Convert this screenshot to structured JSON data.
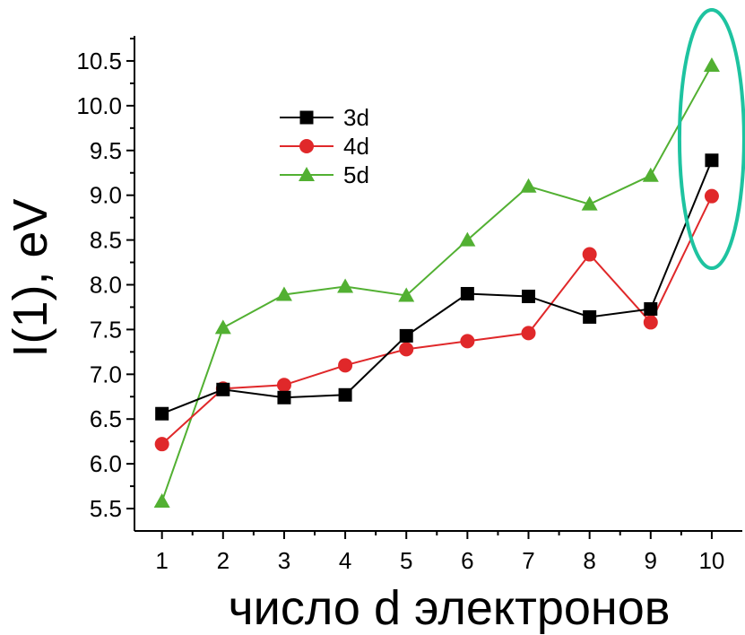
{
  "chart_data": {
    "type": "line",
    "xlabel": "число d электронов",
    "ylabel": "I(1), eV",
    "x": [
      1,
      2,
      3,
      4,
      5,
      6,
      7,
      8,
      9,
      10
    ],
    "xlim": [
      0.55,
      10.5
    ],
    "ylim": [
      5.25,
      10.78
    ],
    "x_ticks": [
      "1",
      "2",
      "3",
      "4",
      "5",
      "6",
      "7",
      "8",
      "9",
      "10"
    ],
    "y_ticks": [
      "5.5",
      "6.0",
      "6.5",
      "7.0",
      "7.5",
      "8.0",
      "8.5",
      "9.0",
      "9.5",
      "10.0",
      "10.5"
    ],
    "legend_position": "upper-left",
    "grid": false,
    "series": [
      {
        "name": "3d",
        "color": "#000000",
        "marker": "square",
        "values": [
          6.56,
          6.83,
          6.74,
          6.77,
          7.43,
          7.9,
          7.87,
          7.64,
          7.73,
          9.39
        ]
      },
      {
        "name": "4d",
        "color": "#e0282a",
        "marker": "circle",
        "values": [
          6.22,
          6.84,
          6.88,
          7.1,
          7.28,
          7.37,
          7.46,
          8.34,
          7.58,
          8.99
        ]
      },
      {
        "name": "5d",
        "color": "#52b032",
        "marker": "triangle",
        "values": [
          5.58,
          7.52,
          7.89,
          7.98,
          7.88,
          8.5,
          9.1,
          8.9,
          9.22,
          10.45
        ]
      }
    ],
    "annotation": {
      "shape": "ellipse",
      "color": "#1ec3a0",
      "target_x": 10
    }
  }
}
